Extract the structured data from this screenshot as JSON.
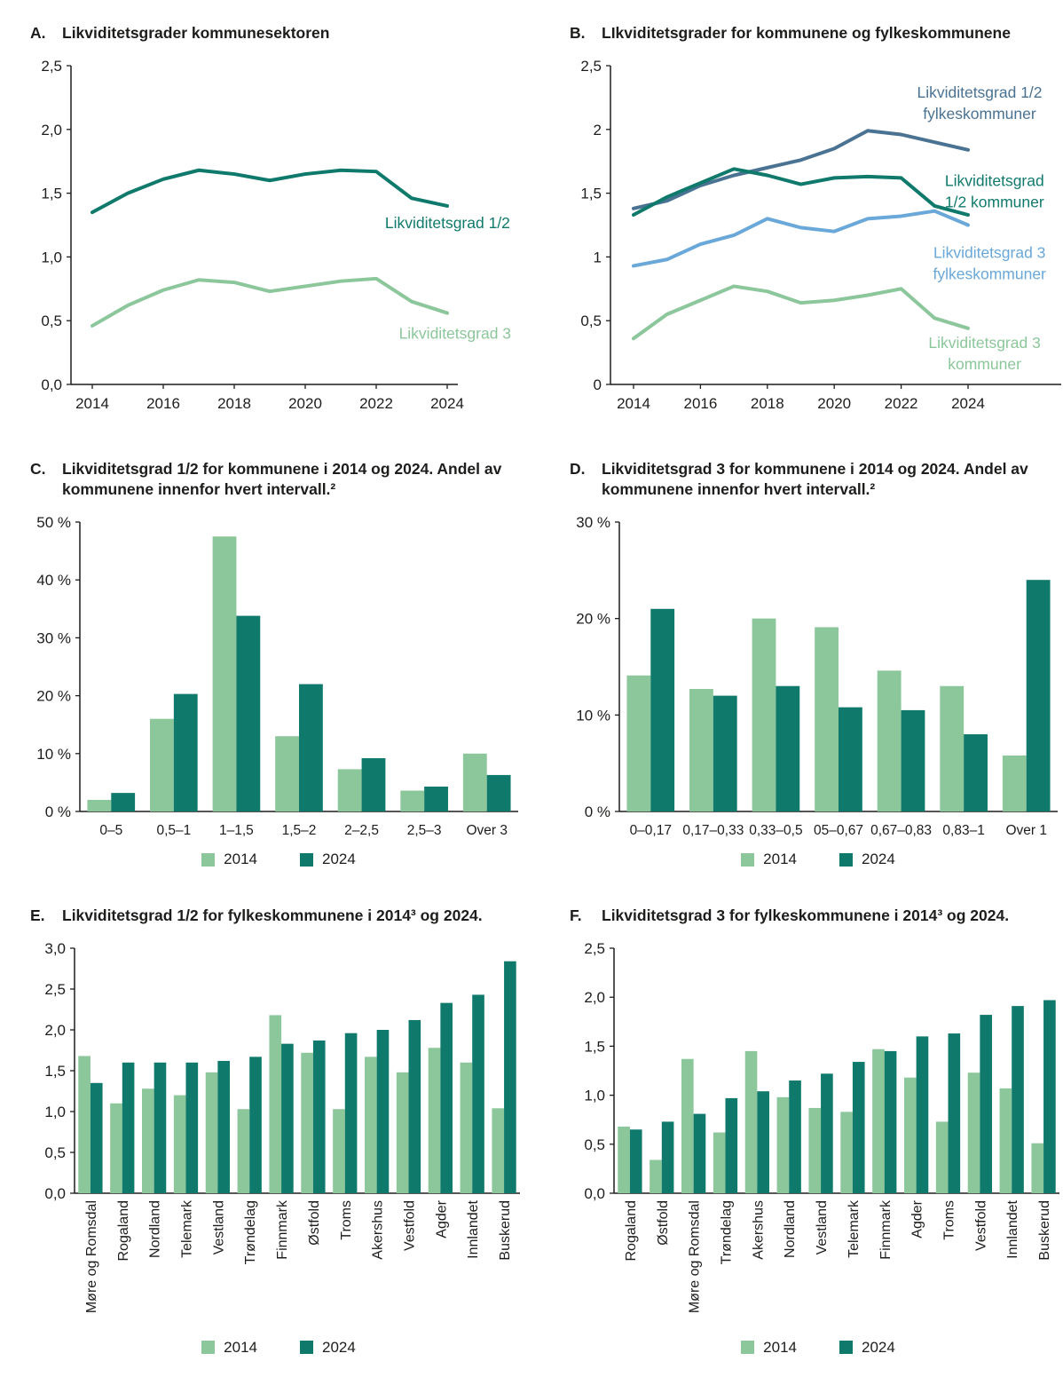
{
  "page": {
    "background": "#ffffff",
    "text_color": "#1d1d1b"
  },
  "colors": {
    "dark_teal": "#0f7a6c",
    "light_green": "#8cc69b",
    "slate_blue": "#4a7292",
    "light_blue": "#69a8d9"
  },
  "chart_data": [
    {
      "panel": "A.",
      "title": "Likviditetsgrader kommunesektoren",
      "type": "line",
      "x": [
        2014,
        2015,
        2016,
        2017,
        2018,
        2019,
        2020,
        2021,
        2022,
        2023,
        2024
      ],
      "xticks": [
        2014,
        2016,
        2018,
        2020,
        2022,
        2024
      ],
      "ylim": [
        0,
        2.5
      ],
      "yticks": [
        {
          "v": 0,
          "label": "0,0"
        },
        {
          "v": 0.5,
          "label": "0,5"
        },
        {
          "v": 1,
          "label": "1,0"
        },
        {
          "v": 1.5,
          "label": "1,5"
        },
        {
          "v": 2,
          "label": "2,0"
        },
        {
          "v": 2.5,
          "label": "2,5"
        }
      ],
      "series": [
        {
          "name": "Likviditetsgrad 1/2",
          "color": "dark_teal",
          "values": [
            1.35,
            1.5,
            1.61,
            1.68,
            1.65,
            1.6,
            1.65,
            1.68,
            1.67,
            1.46,
            1.4
          ],
          "annotation": {
            "lines": [
              "Likviditetsgrad 1/2"
            ],
            "fx": 0.84,
            "fy": 0.475
          }
        },
        {
          "name": "Likviditetsgrad 3",
          "color": "light_green",
          "values": [
            0.46,
            0.62,
            0.74,
            0.82,
            0.8,
            0.73,
            0.77,
            0.81,
            0.83,
            0.65,
            0.56
          ],
          "annotation": {
            "lines": [
              "Likviditetsgrad 3"
            ],
            "fx": 0.855,
            "fy": 0.775
          }
        }
      ]
    },
    {
      "panel": "B.",
      "title": "LIkviditetsgrader for kommunene og fylkeskommunene",
      "type": "line",
      "x": [
        2014,
        2015,
        2016,
        2017,
        2018,
        2019,
        2020,
        2021,
        2022,
        2023,
        2024
      ],
      "xticks": [
        2014,
        2016,
        2018,
        2020,
        2022,
        2024
      ],
      "ylim": [
        0,
        2.5
      ],
      "yticks": [
        {
          "v": 0,
          "label": "0"
        },
        {
          "v": 0.5,
          "label": "0,5"
        },
        {
          "v": 1,
          "label": "1"
        },
        {
          "v": 1.5,
          "label": "1,5"
        },
        {
          "v": 2,
          "label": "2"
        },
        {
          "v": 2.5,
          "label": "2,5"
        }
      ],
      "series": [
        {
          "name": "Likviditetsgrad 1/2 fylkeskommuner",
          "color": "slate_blue",
          "values": [
            1.38,
            1.44,
            1.56,
            1.64,
            1.7,
            1.76,
            1.85,
            1.99,
            1.96,
            1.9,
            1.84
          ],
          "annotation": {
            "lines": [
              "Likviditetsgrad 1/2",
              "fylkeskommuner"
            ],
            "fx": 0.825,
            "fy": 0.12
          }
        },
        {
          "name": "Likviditetsgrad 1/2 kommuner",
          "color": "dark_teal",
          "values": [
            1.33,
            1.47,
            1.58,
            1.69,
            1.64,
            1.57,
            1.62,
            1.63,
            1.62,
            1.4,
            1.33
          ],
          "annotation": {
            "lines": [
              "Likviditetsgrad",
              "1/2 kommuner"
            ],
            "fx": 0.855,
            "fy": 0.36
          }
        },
        {
          "name": "Likviditetsgrad 3 fylkeskommuner",
          "color": "light_blue",
          "values": [
            0.93,
            0.98,
            1.1,
            1.17,
            1.3,
            1.23,
            1.2,
            1.3,
            1.32,
            1.36,
            1.25
          ],
          "annotation": {
            "lines": [
              "Likviditetsgrad 3",
              "fylkeskommuner"
            ],
            "fx": 0.845,
            "fy": 0.555
          }
        },
        {
          "name": "Likviditetsgrad 3 kommuner",
          "color": "light_green",
          "values": [
            0.36,
            0.55,
            0.66,
            0.77,
            0.73,
            0.64,
            0.66,
            0.7,
            0.75,
            0.52,
            0.44
          ],
          "annotation": {
            "lines": [
              "Likviditetsgrad 3",
              "kommuner"
            ],
            "fx": 0.835,
            "fy": 0.8
          }
        }
      ]
    },
    {
      "panel": "C.",
      "title": "Likviditetsgrad 1/2 for kommunene i 2014 og 2024. Andel av kommunene innenfor hvert intervall.²",
      "type": "bar",
      "categories": [
        "0–5",
        "0,5–1",
        "1–1,5",
        "1,5–2",
        "2–2,5",
        "2,5–3",
        "Over 3"
      ],
      "ylim": [
        0,
        50
      ],
      "yticks": [
        {
          "v": 0,
          "label": "0 %"
        },
        {
          "v": 10,
          "label": "10 %"
        },
        {
          "v": 20,
          "label": "20 %"
        },
        {
          "v": 30,
          "label": "30 %"
        },
        {
          "v": 40,
          "label": "40 %"
        },
        {
          "v": 50,
          "label": "50 %"
        }
      ],
      "series": [
        {
          "name": "2014",
          "color": "light_green",
          "values": [
            2.0,
            16.0,
            47.5,
            13.0,
            7.3,
            3.6,
            10.0
          ]
        },
        {
          "name": "2024",
          "color": "dark_teal",
          "values": [
            3.2,
            20.3,
            33.8,
            22.0,
            9.2,
            4.3,
            6.3
          ]
        }
      ]
    },
    {
      "panel": "D.",
      "title": "Likviditetsgrad 3  for kommunene i 2014 og 2024. Andel av kommunene innenfor hvert intervall.²",
      "type": "bar",
      "categories": [
        "0–0,17",
        "0,17–0,33",
        "0,33–0,5",
        "05–0,67",
        "0,67–0,83",
        "0,83–1",
        "Over 1"
      ],
      "ylim": [
        0,
        30
      ],
      "yticks": [
        {
          "v": 0,
          "label": "0 %"
        },
        {
          "v": 10,
          "label": "10 %"
        },
        {
          "v": 20,
          "label": "20 %"
        },
        {
          "v": 30,
          "label": "30 %"
        }
      ],
      "series": [
        {
          "name": "2014",
          "color": "light_green",
          "values": [
            14.1,
            12.7,
            20.0,
            19.1,
            14.6,
            13.0,
            5.8
          ]
        },
        {
          "name": "2024",
          "color": "dark_teal",
          "values": [
            21.0,
            12.0,
            13.0,
            10.8,
            10.5,
            8.0,
            24.0
          ]
        }
      ]
    },
    {
      "panel": "E.",
      "title": "Likviditetsgrad 1/2 for fylkeskommunene i 2014³ og 2024.",
      "type": "bar",
      "categories": [
        "Møre og Romsdal",
        "Rogaland",
        "Nordland",
        "Telemark",
        "Vestland",
        "Trøndelag",
        "Finnmark",
        "Østfold",
        "Troms",
        "Akershus",
        "Vestfold",
        "Agder",
        "Innlandet",
        "Buskerud"
      ],
      "ylim": [
        0,
        3
      ],
      "yticks": [
        {
          "v": 0,
          "label": "0,0"
        },
        {
          "v": 0.5,
          "label": "0,5"
        },
        {
          "v": 1,
          "label": "1,0"
        },
        {
          "v": 1.5,
          "label": "1,5"
        },
        {
          "v": 2,
          "label": "2,0"
        },
        {
          "v": 2.5,
          "label": "2,5"
        },
        {
          "v": 3,
          "label": "3,0"
        }
      ],
      "series": [
        {
          "name": "2014",
          "color": "light_green",
          "values": [
            1.68,
            1.1,
            1.28,
            1.2,
            1.48,
            1.03,
            2.18,
            1.72,
            1.03,
            1.67,
            1.48,
            1.78,
            1.6,
            1.04
          ]
        },
        {
          "name": "2024",
          "color": "dark_teal",
          "values": [
            1.35,
            1.6,
            1.6,
            1.6,
            1.62,
            1.67,
            1.83,
            1.87,
            1.96,
            2.0,
            2.12,
            2.33,
            2.43,
            2.84
          ]
        }
      ]
    },
    {
      "panel": "F.",
      "title": "Likviditetsgrad 3 for fylkeskommunene i 2014³ og 2024.",
      "type": "bar",
      "categories": [
        "Rogaland",
        "Østfold",
        "Møre og Romsdal",
        "Trøndelag",
        "Akershus",
        "Nordland",
        "Vestland",
        "Telemark",
        "Finnmark",
        "Agder",
        "Troms",
        "Vestfold",
        "Innlandet",
        "Buskerud"
      ],
      "ylim": [
        0,
        2.5
      ],
      "yticks": [
        {
          "v": 0,
          "label": "0,0"
        },
        {
          "v": 0.5,
          "label": "0,5"
        },
        {
          "v": 1,
          "label": "1,0"
        },
        {
          "v": 1.5,
          "label": "1,5"
        },
        {
          "v": 2,
          "label": "2,0"
        },
        {
          "v": 2.5,
          "label": "2,5"
        }
      ],
      "series": [
        {
          "name": "2014",
          "color": "light_green",
          "values": [
            0.68,
            0.34,
            1.37,
            0.62,
            1.45,
            0.98,
            0.87,
            0.83,
            1.47,
            1.18,
            0.73,
            1.23,
            1.07,
            0.51
          ]
        },
        {
          "name": "2024",
          "color": "dark_teal",
          "values": [
            0.65,
            0.73,
            0.81,
            0.97,
            1.04,
            1.15,
            1.22,
            1.34,
            1.45,
            1.6,
            1.63,
            1.82,
            1.91,
            1.97
          ]
        }
      ]
    }
  ]
}
